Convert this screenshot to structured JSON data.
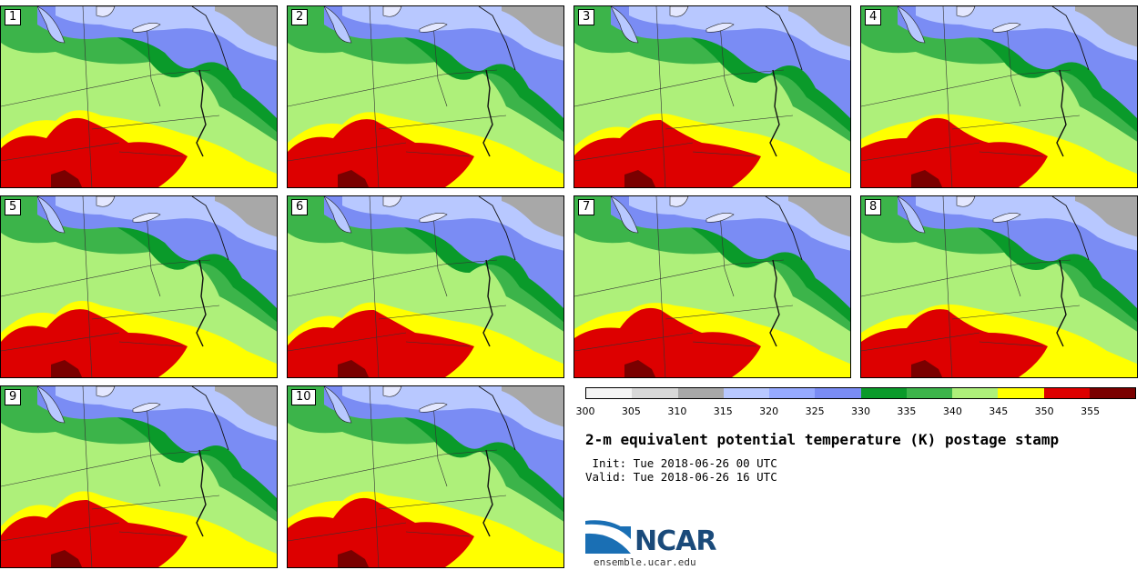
{
  "panels": [
    {
      "label": "1"
    },
    {
      "label": "2"
    },
    {
      "label": "3"
    },
    {
      "label": "4"
    },
    {
      "label": "5"
    },
    {
      "label": "6"
    },
    {
      "label": "7"
    },
    {
      "label": "8"
    },
    {
      "label": "9"
    },
    {
      "label": "10"
    }
  ],
  "colorbar": {
    "colors": [
      "#f4f4f4",
      "#d8d8d8",
      "#a8a8a8",
      "#b8c8ff",
      "#96aaff",
      "#7a8cf4",
      "#0a9a2a",
      "#3cb44a",
      "#aef07a",
      "#ffff00",
      "#dd0000",
      "#7a0000"
    ],
    "ticks": [
      "300",
      "305",
      "310",
      "315",
      "320",
      "325",
      "330",
      "335",
      "340",
      "345",
      "350",
      "355"
    ]
  },
  "title": "2-m equivalent potential temperature (K) postage stamp",
  "init_line": " Init: Tue 2018-06-26 00 UTC",
  "valid_line": "Valid: Tue 2018-06-26 16 UTC",
  "logo": {
    "text": "NCAR",
    "url": "ensemble.ucar.edu"
  },
  "legend_colors": {
    "gray": "#a8a8a8",
    "blue_light": "#b8c8ff",
    "blue": "#7a8cf4",
    "green_dark": "#0a9a2a",
    "green": "#3cb44a",
    "green_light": "#aef07a",
    "yellow": "#ffff00",
    "red": "#dd0000",
    "dark_red": "#7a0000"
  }
}
